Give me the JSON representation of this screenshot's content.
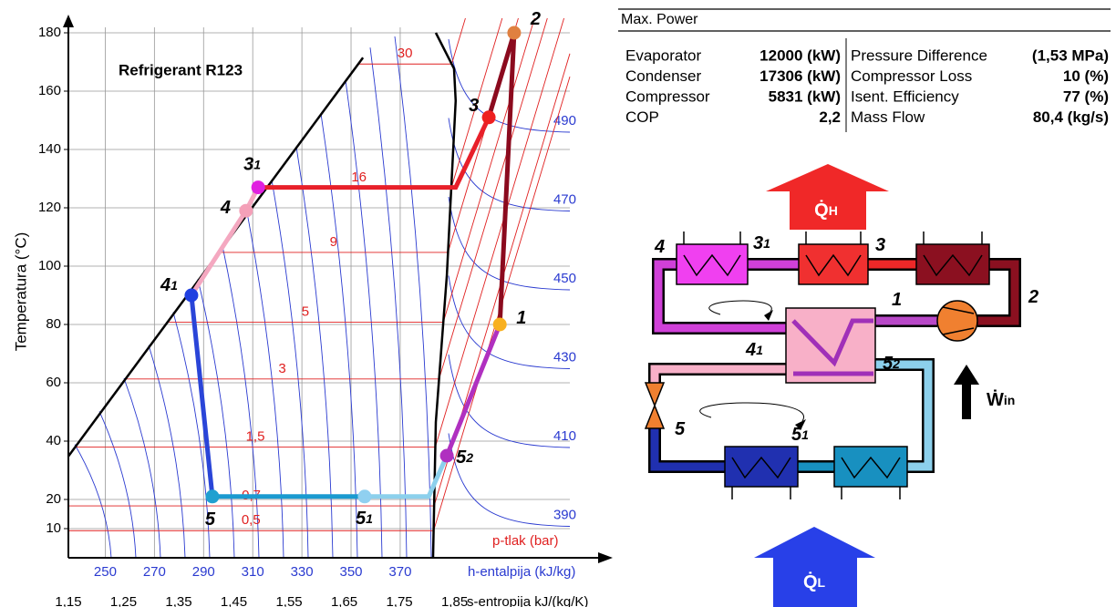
{
  "chart_data": {
    "type": "line",
    "title": "Refrigerant R123",
    "y_label": "Temperatura (°C)",
    "x_label": "s-entropija kJ/(kg/K)",
    "x2_label": "h-entalpija (kJ/kg)",
    "isobar_label": "p-tlak (bar)",
    "xlim": [
      1.15,
      2.13
    ],
    "x2lim": [
      235,
      452
    ],
    "ylim": [
      0,
      185
    ],
    "grid": true,
    "yticks": [
      10,
      20,
      40,
      60,
      80,
      100,
      120,
      140,
      160,
      180
    ],
    "xticks": [
      {
        "value": 1.15,
        "label": "1,15"
      },
      {
        "value": 1.25,
        "label": "1,25"
      },
      {
        "value": 1.35,
        "label": "1,35"
      },
      {
        "value": 1.45,
        "label": "1,45"
      },
      {
        "value": 1.55,
        "label": "1,55"
      },
      {
        "value": 1.65,
        "label": "1,65"
      },
      {
        "value": 1.75,
        "label": "1,75"
      },
      {
        "value": 1.85,
        "label": "1,85"
      }
    ],
    "x2ticks": [
      250,
      270,
      290,
      310,
      330,
      350,
      370
    ],
    "saturation_liquid": {
      "s": [
        1.15,
        1.684
      ],
      "t": [
        34.8,
        171.5
      ]
    },
    "saturation_vapor": {
      "s": [
        1.816,
        1.849,
        1.852,
        1.836,
        1.816,
        1.811
      ],
      "t": [
        180,
        167.7,
        156.7,
        96.9,
        46.5,
        0
      ]
    },
    "isobars": [
      {
        "label": "30",
        "t": 169.3
      },
      {
        "label": "16",
        "t": 126.8
      },
      {
        "label": "9",
        "t": 104.7
      },
      {
        "label": "5",
        "t": 80.8
      },
      {
        "label": "3",
        "t": 61.3
      },
      {
        "label": "1,5",
        "t": 38
      },
      {
        "label": "0,7",
        "t": 17.8
      },
      {
        "label": "0,5",
        "t": 9.3
      }
    ],
    "isenthalp_labels": [
      490,
      470,
      450,
      430,
      410,
      390
    ],
    "segments": [
      {
        "color": "#8b0a1e",
        "s": [
          1.932,
          1.958
        ],
        "t": [
          80,
          180
        ]
      },
      {
        "color": "#8b0a1e",
        "s": [
          1.958,
          1.912
        ],
        "t": [
          180,
          151
        ]
      },
      {
        "color": "#e8202a",
        "s": [
          1.912,
          1.852,
          1.494
        ],
        "t": [
          151,
          127,
          127
        ]
      },
      {
        "color": "#f4a8c0",
        "s": [
          1.494,
          1.472,
          1.373
        ],
        "t": [
          127,
          119,
          90
        ]
      },
      {
        "color": "#2a45d8",
        "s": [
          1.373,
          1.411
        ],
        "t": [
          90,
          21
        ]
      },
      {
        "color": "#1a9ad0",
        "s": [
          1.411,
          1.687
        ],
        "t": [
          21,
          21
        ]
      },
      {
        "color": "#8cd0ec",
        "s": [
          1.687,
          1.803,
          1.836
        ],
        "t": [
          21,
          21,
          35
        ]
      },
      {
        "color": "#b030c0",
        "s": [
          1.836,
          1.932
        ],
        "t": [
          35,
          80
        ]
      }
    ],
    "points": [
      {
        "label": "1",
        "s": 1.932,
        "t": 80,
        "color": "#f8b020"
      },
      {
        "label": "2",
        "s": 1.958,
        "t": 180,
        "color": "#e08040"
      },
      {
        "label": "3",
        "s": 1.912,
        "t": 151,
        "color": "#ee2020"
      },
      {
        "label": "3",
        "sub": "1",
        "s": 1.494,
        "t": 127,
        "color": "#e020e0"
      },
      {
        "label": "4",
        "s": 1.472,
        "t": 119,
        "color": "#f4a0b8"
      },
      {
        "label": "4",
        "sub": "1",
        "s": 1.373,
        "t": 90,
        "color": "#2040e0"
      },
      {
        "label": "5",
        "s": 1.411,
        "t": 21,
        "color": "#20a0d0"
      },
      {
        "label": "5",
        "sub": "1",
        "s": 1.687,
        "t": 21,
        "color": "#90d0f0"
      },
      {
        "label": "5",
        "sub": "2",
        "s": 1.836,
        "t": 35,
        "color": "#b030c0"
      }
    ]
  },
  "table": {
    "title": "Max. Power",
    "rows": [
      [
        "Evaporator",
        "12000 (kW)",
        "Pressure Difference",
        "(1,53 MPa)"
      ],
      [
        "Condenser",
        "17306 (kW)",
        "Compressor Loss",
        "10 (%)"
      ],
      [
        "Compressor",
        "5831 (kW)",
        "Isent. Efficiency",
        "77 (%)"
      ],
      [
        "COP",
        "2,2",
        "Mass Flow",
        "80,4 (kg/s)"
      ]
    ]
  },
  "schematic": {
    "heat_out": {
      "symbol": "Q̇",
      "sub": "H"
    },
    "heat_in": {
      "symbol": "Q̇",
      "sub": "L"
    },
    "work_in": {
      "symbol": "Ẇ",
      "sub": "in"
    },
    "states": [
      {
        "label": "4"
      },
      {
        "label": "3",
        "sub": "1"
      },
      {
        "label": "3"
      },
      {
        "label": "2"
      },
      {
        "label": "1"
      },
      {
        "label": "4",
        "sub": "1"
      },
      {
        "label": "5",
        "sub": "2"
      },
      {
        "label": "5"
      },
      {
        "label": "5",
        "sub": "1"
      }
    ]
  }
}
